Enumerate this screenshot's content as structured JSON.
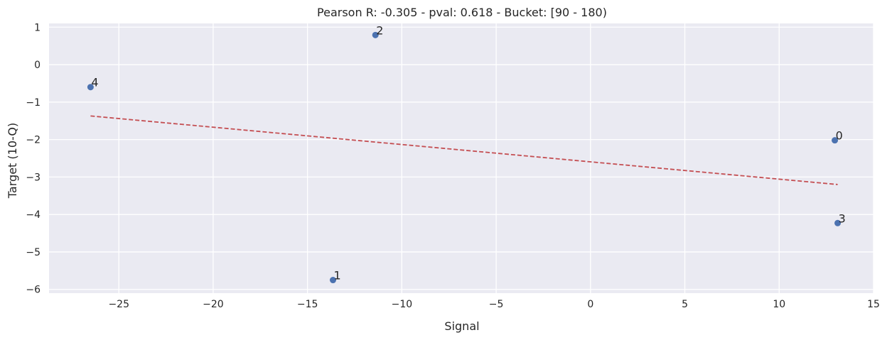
{
  "chart_data": {
    "type": "scatter",
    "title": "Pearson R: -0.305 - pval: 0.618 - Bucket: [90 - 180)",
    "xlabel": "Signal",
    "ylabel": "Target (10-Q)",
    "xlim": [
      -28.7,
      15
    ],
    "ylim": [
      -6.1,
      1.1
    ],
    "xticks": [
      -25,
      -20,
      -15,
      -10,
      -5,
      0,
      5,
      10,
      15
    ],
    "yticks": [
      1,
      0,
      -1,
      -2,
      -3,
      -4,
      -5,
      -6
    ],
    "xtick_labels": [
      "−25",
      "−20",
      "−15",
      "−10",
      "−5",
      "0",
      "5",
      "10",
      "15"
    ],
    "ytick_labels": [
      "1",
      "0",
      "−1",
      "−2",
      "−3",
      "−4",
      "−5",
      "−6"
    ],
    "grid": true,
    "points": [
      {
        "label": "0",
        "x": 12.95,
        "y": -2.02
      },
      {
        "label": "1",
        "x": -13.65,
        "y": -5.75
      },
      {
        "label": "2",
        "x": -11.4,
        "y": 0.79
      },
      {
        "label": "3",
        "x": 13.1,
        "y": -4.23
      },
      {
        "label": "4",
        "x": -26.5,
        "y": -0.6
      }
    ],
    "trendline": {
      "x": [
        -26.5,
        13.1
      ],
      "y": [
        -1.37,
        -3.2
      ]
    },
    "colors": {
      "background": "#eaeaf2",
      "grid": "#ffffff",
      "points": "#4c72b0",
      "trendline": "#c44e52"
    }
  }
}
